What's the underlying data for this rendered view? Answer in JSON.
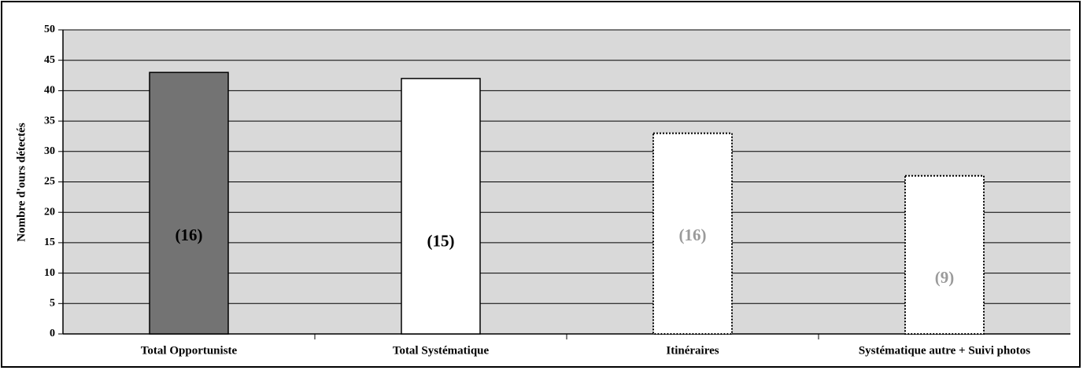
{
  "chart_data": {
    "type": "bar",
    "y_label": "Nombre d'ours détectés",
    "categories": [
      "Total Opportuniste",
      "Total Systématique",
      "Itinéraires",
      "Systématique autre + Suivi photos"
    ],
    "values": [
      43,
      42,
      33,
      26
    ],
    "colors": [
      "#737373",
      "#ffffff",
      "#ffffff",
      "#ffffff"
    ],
    "border_styles": [
      "solid",
      "solid",
      "dotted",
      "dotted"
    ],
    "annotations": [
      {
        "label": "(16)",
        "value": 16,
        "color": "#000000"
      },
      {
        "label": "(15)",
        "value": 15,
        "color": "#000000"
      },
      {
        "label": "(16)",
        "value": 16,
        "color": "#9a9a9a"
      },
      {
        "label": "(9)",
        "value": 9,
        "color": "#9a9a9a"
      }
    ],
    "ylim": [
      0,
      50
    ],
    "yticks": [
      0,
      5,
      10,
      15,
      20,
      25,
      30,
      35,
      40,
      45,
      50
    ],
    "grid": true,
    "plot_background": "#d9d9d9"
  }
}
